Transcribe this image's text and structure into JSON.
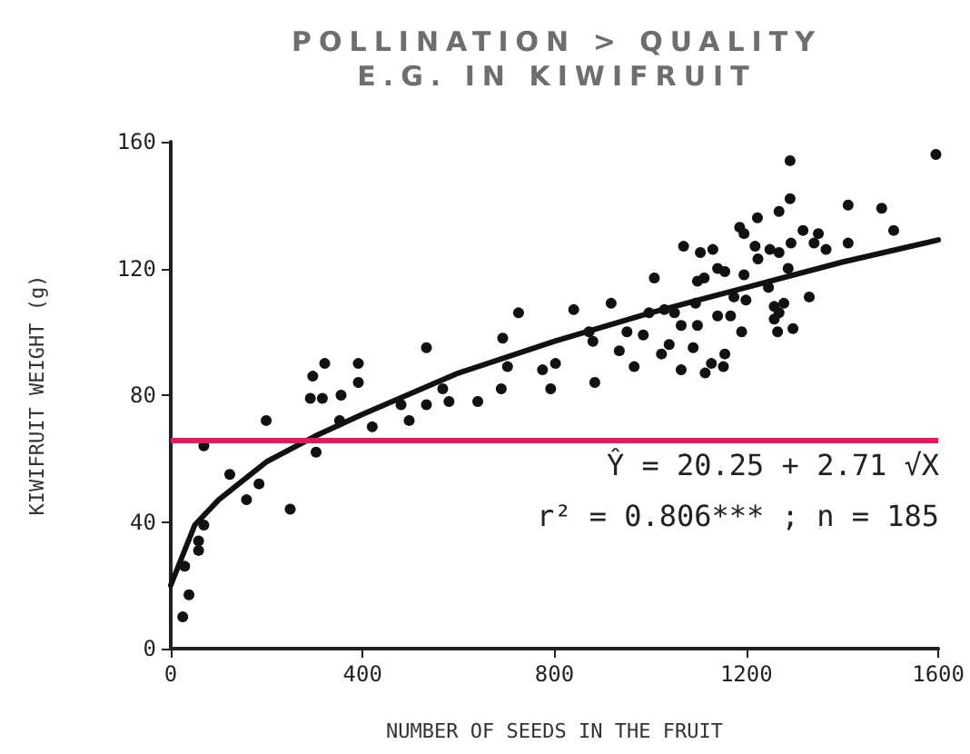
{
  "chart_data": {
    "type": "scatter",
    "title": "POLLINATION > QUALITY\nE.G. IN KIWIFRUIT",
    "xlabel": "NUMBER OF SEEDS IN THE FRUIT",
    "ylabel": "KIWIFRUIT WEIGHT (g)",
    "annotations": [
      "Ŷ = 20.25 + 2.71 √X",
      "r² = 0.806*** ; n = 185"
    ],
    "xlim": [
      0,
      1600
    ],
    "xticks": [
      0,
      400,
      800,
      1200,
      1600
    ],
    "ylim": [
      0,
      160
    ],
    "yticks": [
      0,
      40,
      80,
      120,
      160
    ],
    "grid": false,
    "marker": "circle",
    "ref_lines": [
      {
        "axis": "y",
        "value": 66,
        "color": "#e6195a"
      }
    ],
    "series": [
      {
        "color": "#111111",
        "x": [
          25,
          38,
          29,
          58,
          58,
          69,
          69,
          123,
          158,
          184,
          199,
          249,
          303,
          291,
          296,
          316,
          321,
          352,
          355,
          391,
          391,
          420,
          480,
          497,
          533,
          533,
          567,
          580,
          640,
          689,
          692,
          702,
          725,
          775,
          802,
          792,
          1291,
          1595,
          1291,
          1268,
          1223,
          1186,
          1195,
          1412,
          1482,
          1507,
          1412,
          1069,
          1104,
          1130,
          1218,
          1249,
          1268,
          1293,
          1318,
          1350,
          1341,
          1366,
          1224,
          1287,
          1140,
          1155,
          1195,
          1112,
          1008,
          1098,
          1246,
          1174,
          1199,
          918,
          1094,
          1331,
          1258,
          1278,
          840,
          997,
          1029,
          1050,
          1268,
          1064,
          1098,
          1140,
          1167,
          951,
          985,
          872,
          880,
          1190,
          1258,
          1265,
          1297,
          1039,
          1089,
          935,
          1023,
          1155,
          884,
          966,
          1064,
          1114,
          1127,
          1152
        ],
        "values": [
          10,
          17,
          26,
          34,
          31,
          39,
          64,
          55,
          47,
          52,
          72,
          44,
          62,
          79,
          86,
          79,
          90,
          72,
          80,
          90,
          84,
          70,
          77,
          72,
          77,
          95,
          82,
          78,
          78,
          82,
          98,
          89,
          106,
          88,
          90,
          82,
          154,
          156,
          142,
          138,
          136,
          133,
          131,
          140,
          139,
          132,
          128,
          127,
          125,
          126,
          127,
          126,
          125,
          128,
          132,
          131,
          128,
          126,
          123,
          120,
          120,
          119,
          118,
          117,
          117,
          116,
          114,
          111,
          110,
          109,
          109,
          111,
          108,
          109,
          107,
          106,
          107,
          106,
          106,
          102,
          102,
          105,
          105,
          100,
          99,
          100,
          97,
          100,
          104,
          100,
          101,
          96,
          95,
          94,
          93,
          93,
          84,
          89,
          88,
          87,
          90,
          89
        ]
      },
      {
        "type": "line",
        "marker": "none",
        "color": "#111111",
        "x": [
          0,
          50,
          100,
          200,
          300,
          400,
          600,
          800,
          1000,
          1200,
          1400,
          1600
        ],
        "values": [
          20,
          39,
          47,
          59,
          67,
          74,
          87,
          97,
          106,
          114,
          122,
          129
        ]
      }
    ]
  }
}
